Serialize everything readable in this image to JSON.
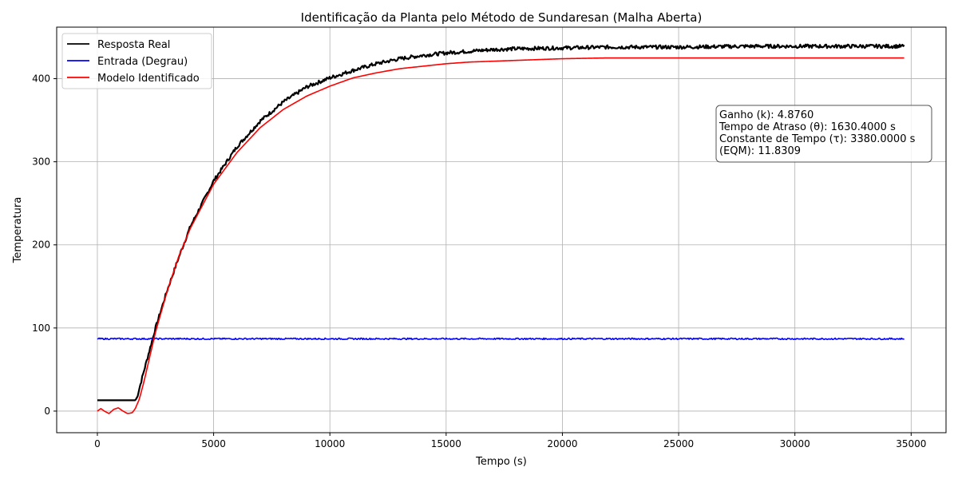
{
  "chart_data": {
    "type": "line",
    "title": "Identificação da Planta pelo Método de Sundaresan (Malha Aberta)",
    "xlabel": "Tempo (s)",
    "ylabel": "Temperatura",
    "xlim": [
      -1750,
      36500
    ],
    "ylim": [
      -26,
      462
    ],
    "xticks": [
      0,
      5000,
      10000,
      15000,
      20000,
      25000,
      30000,
      35000
    ],
    "xtick_labels": [
      "0",
      "5000",
      "10000",
      "15000",
      "20000",
      "25000",
      "30000",
      "35000"
    ],
    "yticks": [
      0,
      100,
      200,
      300,
      400
    ],
    "ytick_labels": [
      "0",
      "100",
      "200",
      "300",
      "400"
    ],
    "grid": true,
    "legend_position": "top-left",
    "series": [
      {
        "name": "Resposta Real",
        "color": "#000000",
        "x": [
          0,
          1630,
          1700,
          2000,
          2500,
          3000,
          3500,
          4000,
          5000,
          6000,
          7000,
          8000,
          9000,
          10000,
          11000,
          12000,
          13000,
          14000,
          15000,
          16000,
          17000,
          18000,
          20000,
          22000,
          25000,
          28000,
          30000,
          32000,
          34700
        ],
        "y": [
          13,
          13,
          16,
          48,
          100,
          145,
          185,
          222,
          277,
          318,
          349,
          372,
          390,
          401,
          410,
          418,
          424,
          428,
          431,
          433,
          435,
          436,
          437,
          438,
          438,
          439,
          439,
          439,
          439
        ]
      },
      {
        "name": "Entrada (Degrau)",
        "color": "#0000ff",
        "x": [
          0,
          34700
        ],
        "y": [
          87,
          87
        ]
      },
      {
        "name": "Modelo Identificado",
        "color": "#ff0000",
        "x": [
          0,
          150,
          300,
          500,
          700,
          900,
          1100,
          1300,
          1500,
          1630,
          1800,
          2000,
          2500,
          3000,
          3500,
          4000,
          5000,
          6000,
          7000,
          8000,
          9000,
          10000,
          11000,
          12000,
          13000,
          14000,
          15000,
          16000,
          18000,
          20000,
          22000,
          25000,
          30000,
          34700
        ],
        "y": [
          0,
          3,
          0,
          -3,
          2,
          4,
          0,
          -3,
          -2,
          3,
          14,
          35,
          95,
          144,
          186,
          220,
          273,
          311,
          341,
          363,
          379,
          391,
          401,
          407,
          412,
          415,
          418,
          420,
          422,
          424,
          425,
          425,
          425,
          425
        ]
      }
    ],
    "annotation": {
      "lines": [
        "Ganho (k): 4.8760",
        "Tempo de Atraso (θ): 1630.4000 s",
        "Constante de Tempo (τ): 3380.0000 s",
        "(EQM): 11.8309"
      ],
      "position": "upper-right"
    }
  }
}
